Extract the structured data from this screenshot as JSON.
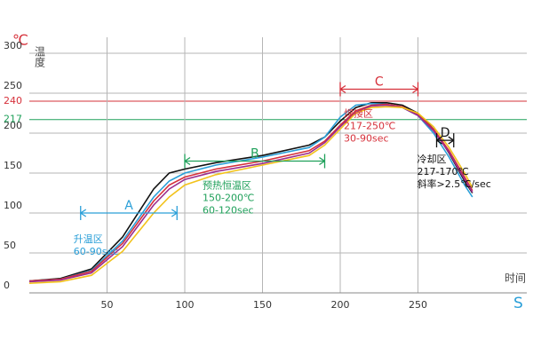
{
  "chart_data": {
    "type": "line",
    "y_unit": "℃",
    "y_label": "温度",
    "x_label": "时间",
    "x_unit": "S",
    "x": [
      0,
      20,
      40,
      60,
      80,
      90,
      100,
      120,
      150,
      180,
      190,
      200,
      210,
      220,
      230,
      240,
      250,
      260,
      270,
      280,
      285
    ],
    "series": [
      {
        "color": "#111111",
        "values": [
          15,
          18,
          30,
          70,
          130,
          150,
          155,
          163,
          172,
          185,
          195,
          215,
          232,
          238,
          238,
          235,
          225,
          205,
          175,
          140,
          125
        ]
      },
      {
        "color": "#2a9fd8",
        "values": [
          15,
          17,
          28,
          65,
          120,
          140,
          150,
          160,
          170,
          182,
          195,
          220,
          235,
          237,
          236,
          232,
          222,
          200,
          170,
          135,
          120
        ]
      },
      {
        "color": "#d6303a",
        "values": [
          15,
          17,
          27,
          62,
          115,
          135,
          145,
          155,
          165,
          178,
          190,
          210,
          228,
          235,
          236,
          233,
          223,
          205,
          178,
          145,
          128
        ]
      },
      {
        "color": "#9b2d8e",
        "values": [
          14,
          16,
          25,
          58,
          110,
          130,
          142,
          152,
          162,
          175,
          188,
          208,
          226,
          234,
          235,
          232,
          222,
          203,
          176,
          142,
          126
        ]
      },
      {
        "color": "#f2c21b",
        "values": [
          12,
          14,
          22,
          52,
          100,
          120,
          135,
          148,
          160,
          172,
          185,
          205,
          225,
          232,
          233,
          232,
          225,
          208,
          182,
          150,
          132
        ]
      }
    ],
    "xlim": [
      0,
      320
    ],
    "ylim": [
      0,
      320
    ],
    "xticks": [
      50,
      100,
      150,
      200,
      250
    ],
    "yticks": [
      0,
      50,
      100,
      150,
      200,
      250,
      300
    ],
    "reference_lines": [
      {
        "value": 240,
        "color": "#d6303a"
      },
      {
        "value": 217,
        "color": "#1fa05a"
      }
    ],
    "grid": true,
    "annotations": [
      {
        "label": "A",
        "x": [
          33,
          95
        ],
        "y": 100,
        "color": "#2a9fd8",
        "text": [
          "升温区",
          "60-90sec"
        ]
      },
      {
        "label": "B",
        "x": [
          100,
          190
        ],
        "y": 165,
        "color": "#1fa05a",
        "text": [
          "预热恒温区",
          "150-200℃",
          "60-120sec"
        ]
      },
      {
        "label": "C",
        "x": [
          200,
          250
        ],
        "y": 255,
        "color": "#d6303a",
        "text": [
          "焊接区",
          "217-250℃",
          "30-90sec"
        ]
      },
      {
        "label": "D",
        "x": [
          262,
          273
        ],
        "y": 191,
        "color": "#111111",
        "text": [
          "冷却区",
          "217-170℃",
          "斜率>2.5℃/sec"
        ]
      }
    ]
  }
}
